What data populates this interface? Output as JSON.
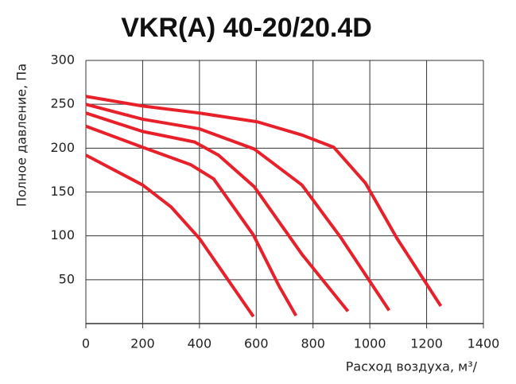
{
  "chart_data": {
    "type": "line",
    "title": "VKR(A) 40-20/20.4D",
    "x_label": "Расход воздуха, м³/",
    "y_label": "Полное давление, Па",
    "xlim": [
      0,
      1400
    ],
    "xticks": [
      0,
      200,
      400,
      600,
      800,
      1000,
      1200,
      1400
    ],
    "ylim": [
      0,
      300
    ],
    "yticks": [
      50,
      100,
      150,
      200,
      250,
      300
    ],
    "grid": true,
    "series": [
      {
        "color": "#e8202a",
        "x": [
          0,
          200,
          300,
          400,
          590
        ],
        "values": [
          192,
          158,
          133,
          97,
          8
        ]
      },
      {
        "color": "#e8202a",
        "x": [
          0,
          200,
          370,
          450,
          590,
          680,
          740
        ],
        "values": [
          225,
          201,
          181,
          165,
          101,
          43,
          9
        ]
      },
      {
        "color": "#e8202a",
        "x": [
          0,
          200,
          383,
          467,
          593,
          761,
          923
        ],
        "values": [
          240,
          219,
          207,
          192,
          156,
          79,
          14
        ]
      },
      {
        "color": "#e8202a",
        "x": [
          0,
          200,
          400,
          593,
          761,
          900,
          1068
        ],
        "values": [
          250,
          233,
          222,
          199,
          158,
          97,
          15
        ]
      },
      {
        "color": "#e8202a",
        "x": [
          0,
          200,
          400,
          604,
          761,
          873,
          985,
          1096,
          1250
        ],
        "values": [
          259,
          248,
          240,
          230,
          215,
          201,
          160,
          97,
          20
        ]
      }
    ]
  }
}
